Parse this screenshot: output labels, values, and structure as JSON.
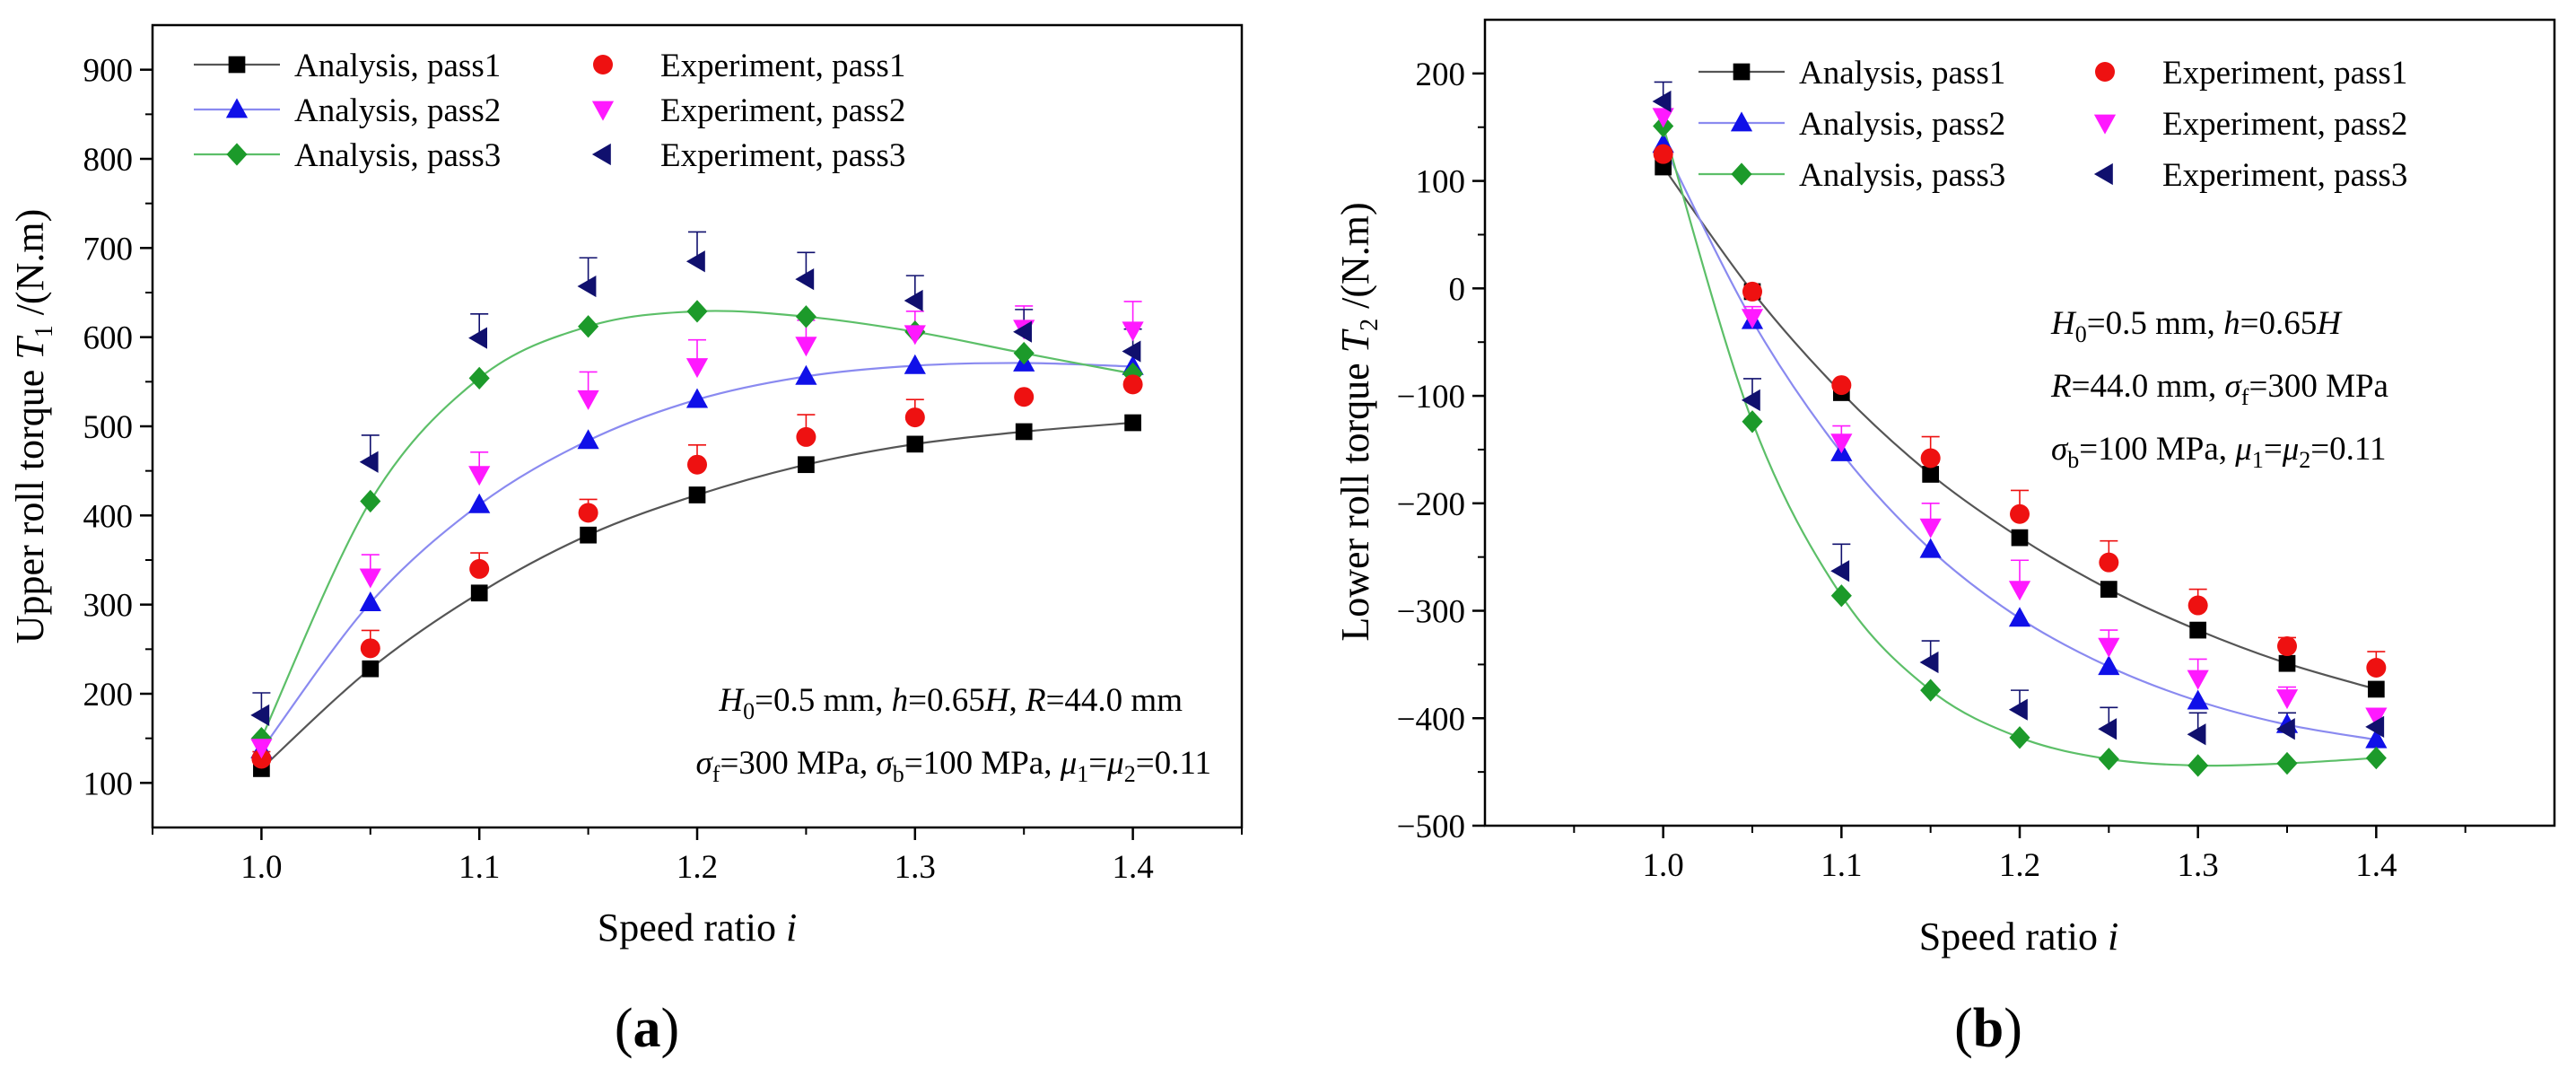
{
  "chart_data": [
    {
      "type": "line",
      "panel_label": "(a)",
      "xlabel": "Speed ratio i",
      "ylabel": "Upper roll torque T1 /(N.m)",
      "xlim": [
        0.95,
        1.45
      ],
      "ylim": [
        50,
        950
      ],
      "xticks": [
        "1.0",
        "1.1",
        "1.2",
        "1.3",
        "1.4"
      ],
      "yticks": [
        "100",
        "200",
        "300",
        "400",
        "500",
        "600",
        "700",
        "800",
        "900"
      ],
      "grid": false,
      "legend_position": "top-left",
      "annotation_lines": [
        "H0=0.5 mm, h=0.65H, R=44.0 mm",
        "σf=300 MPa, σb=100 MPa, μ1=μ2=0.11"
      ],
      "x": [
        1.0,
        1.05,
        1.1,
        1.15,
        1.2,
        1.25,
        1.3,
        1.35,
        1.4
      ],
      "series": [
        {
          "name": "Analysis, pass1",
          "kind": "analysis",
          "marker": "square",
          "color": "#000000",
          "line_color": "#555555",
          "values": [
            116,
            228,
            313,
            378,
            423,
            457,
            480,
            494,
            504
          ]
        },
        {
          "name": "Analysis, pass2",
          "kind": "analysis",
          "marker": "triangle-up",
          "color": "#1010e8",
          "line_color": "#8a8af0",
          "values": [
            137,
            302,
            412,
            484,
            530,
            556,
            568,
            571,
            567
          ]
        },
        {
          "name": "Analysis, pass3",
          "kind": "analysis",
          "marker": "diamond",
          "color": "#1c9a2a",
          "line_color": "#5cbf68",
          "values": [
            150,
            416,
            554,
            612,
            629,
            623,
            606,
            582,
            559
          ]
        },
        {
          "name": "Experiment, pass1",
          "kind": "experiment",
          "marker": "circle",
          "color": "#ee1111",
          "values": [
            127,
            251,
            340,
            403,
            457,
            488,
            510,
            533,
            547
          ],
          "errors": [
            8,
            20,
            18,
            15,
            22,
            25,
            20,
            0,
            0
          ]
        },
        {
          "name": "Experiment, pass2",
          "kind": "experiment",
          "marker": "triangle-down",
          "color": "#ff19ff",
          "values": [
            140,
            331,
            446,
            531,
            567,
            591,
            604,
            610,
            608
          ],
          "errors": [
            10,
            25,
            25,
            30,
            30,
            28,
            25,
            25,
            32
          ]
        },
        {
          "name": "Experiment, pass3",
          "kind": "experiment",
          "marker": "triangle-left",
          "color": "#10106e",
          "values": [
            176,
            460,
            599,
            657,
            685,
            665,
            641,
            606,
            584
          ],
          "errors": [
            25,
            30,
            27,
            32,
            33,
            30,
            28,
            25,
            25
          ]
        }
      ]
    },
    {
      "type": "line",
      "panel_label": "(b)",
      "xlabel": "Speed ratio i",
      "ylabel": "Lower roll torque T2 /(N.m)",
      "xlim": [
        0.9,
        1.5
      ],
      "ylim": [
        -500,
        250
      ],
      "xticks": [
        "1.0",
        "1.1",
        "1.2",
        "1.3",
        "1.4"
      ],
      "yticks": [
        "−500",
        "−400",
        "−300",
        "−200",
        "−100",
        "0",
        "100",
        "200"
      ],
      "grid": false,
      "legend_position": "top-right",
      "annotation_lines": [
        "H0=0.5 mm, h=0.65H",
        "R=44.0 mm, σf=300 MPa",
        "σb=100 MPa, μ1=μ2=0.11"
      ],
      "x": [
        1.0,
        1.05,
        1.1,
        1.15,
        1.2,
        1.25,
        1.3,
        1.35,
        1.4
      ],
      "series": [
        {
          "name": "Analysis, pass1",
          "kind": "analysis",
          "marker": "square",
          "color": "#000000",
          "line_color": "#555555",
          "values": [
            113,
            -3,
            -97,
            -173,
            -232,
            -280,
            -318,
            -349,
            -373
          ]
        },
        {
          "name": "Analysis, pass2",
          "kind": "analysis",
          "marker": "triangle-up",
          "color": "#1010e8",
          "line_color": "#8a8af0",
          "values": [
            134,
            -30,
            -153,
            -243,
            -307,
            -352,
            -384,
            -406,
            -420
          ]
        },
        {
          "name": "Analysis, pass3",
          "kind": "analysis",
          "marker": "diamond",
          "color": "#1c9a2a",
          "line_color": "#5cbf68",
          "values": [
            151,
            -124,
            -286,
            -374,
            -418,
            -438,
            -444,
            -442,
            -437
          ]
        },
        {
          "name": "Experiment, pass1",
          "kind": "experiment",
          "marker": "circle",
          "color": "#ee1111",
          "values": [
            125,
            -3,
            -90,
            -158,
            -210,
            -255,
            -295,
            -333,
            -353
          ],
          "errors": [
            0,
            0,
            0,
            20,
            22,
            20,
            15,
            8,
            15
          ]
        },
        {
          "name": "Experiment, pass2",
          "kind": "experiment",
          "marker": "triangle-down",
          "color": "#ff19ff",
          "values": [
            160,
            -27,
            -143,
            -222,
            -280,
            -333,
            -363,
            -381,
            -398
          ],
          "errors": [
            0,
            10,
            15,
            22,
            27,
            15,
            18,
            10,
            0
          ]
        },
        {
          "name": "Experiment, pass3",
          "kind": "experiment",
          "marker": "triangle-left",
          "color": "#10106e",
          "values": [
            174,
            -104,
            -263,
            -348,
            -392,
            -410,
            -415,
            -410,
            -408
          ],
          "errors": [
            18,
            20,
            25,
            20,
            18,
            20,
            20,
            15,
            0
          ]
        }
      ]
    }
  ]
}
